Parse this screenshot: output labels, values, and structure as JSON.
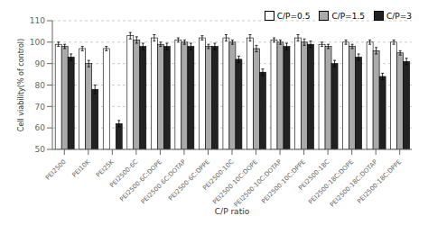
{
  "chart_data": {
    "type": "bar",
    "categories": [
      "PEI2500",
      "PEI10K",
      "PEI25K",
      "PEI2500-6C",
      "PEI2500-6C:DOPE",
      "PEI2500-6C:DOTAP",
      "PEI2500-6C:DPPE",
      "PEI2500-10C",
      "PEI2500-10C:DOPE",
      "PEI2500-10C:DOTAP",
      "PEI2500-10C:DPPE",
      "PEI2500-18C",
      "PEI2500-18C:DOPE",
      "PEI2500-18C:DOTAP",
      "PEI2500-18C:DPPE"
    ],
    "series": [
      {
        "name": "C/P=0.5",
        "color": "#ffffff",
        "values": [
          99,
          97,
          97,
          103,
          102,
          101,
          102,
          102,
          102,
          101,
          102,
          99,
          100,
          100,
          100
        ],
        "error": [
          1,
          1,
          1,
          1.5,
          1.5,
          1,
          1,
          1.5,
          1.5,
          1,
          1.5,
          1,
          1,
          1,
          1
        ]
      },
      {
        "name": "C/P=1.5",
        "color": "#aaaaaa",
        "values": [
          98,
          90,
          null,
          101,
          99,
          100,
          98,
          100,
          97,
          100,
          100,
          98,
          98,
          96,
          95
        ],
        "error": [
          1,
          1.5,
          null,
          1.5,
          1,
          1,
          1,
          1,
          1.5,
          1,
          1.5,
          1,
          1,
          1.5,
          1
        ]
      },
      {
        "name": "C/P=3",
        "color": "#222222",
        "values": [
          93,
          78,
          62,
          98,
          98,
          98,
          98,
          92,
          86,
          98,
          99,
          90,
          93,
          84,
          91
        ],
        "error": [
          1.5,
          2,
          1.5,
          1.5,
          1.5,
          1.5,
          1.5,
          1.5,
          1.5,
          1.5,
          1.5,
          1.5,
          1.5,
          1.5,
          1.5
        ]
      }
    ],
    "ylabel": "Cell viability(% of control)",
    "xlabel": "C/P ratio",
    "ylim": [
      50,
      110
    ],
    "yticks": [
      50,
      60,
      70,
      80,
      90,
      100,
      110
    ],
    "grid": true,
    "legend": "upper right"
  }
}
